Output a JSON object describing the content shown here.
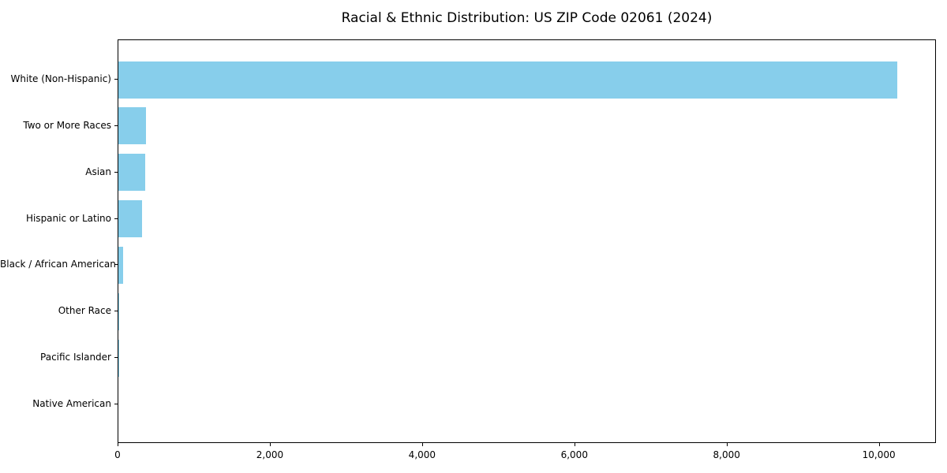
{
  "chart_data": {
    "type": "bar",
    "orientation": "horizontal",
    "title": "Racial & Ethnic Distribution: US ZIP Code 02061 (2024)",
    "categories": [
      "White (Non-Hispanic)",
      "Two or More Races",
      "Asian",
      "Hispanic or Latino",
      "Black / African American",
      "Other Race",
      "Pacific Islander",
      "Native American"
    ],
    "values": [
      10230,
      365,
      355,
      315,
      60,
      10,
      2,
      0
    ],
    "xlabel": "",
    "ylabel": "",
    "xlim": [
      0,
      10750
    ],
    "x_ticks": [
      0,
      2000,
      4000,
      6000,
      8000,
      10000
    ],
    "x_tick_labels": [
      "0",
      "2,000",
      "4,000",
      "6,000",
      "8,000",
      "10,000"
    ],
    "bar_color": "#87ceeb",
    "frame_color": "#000000",
    "grid": false,
    "legend": "none"
  }
}
